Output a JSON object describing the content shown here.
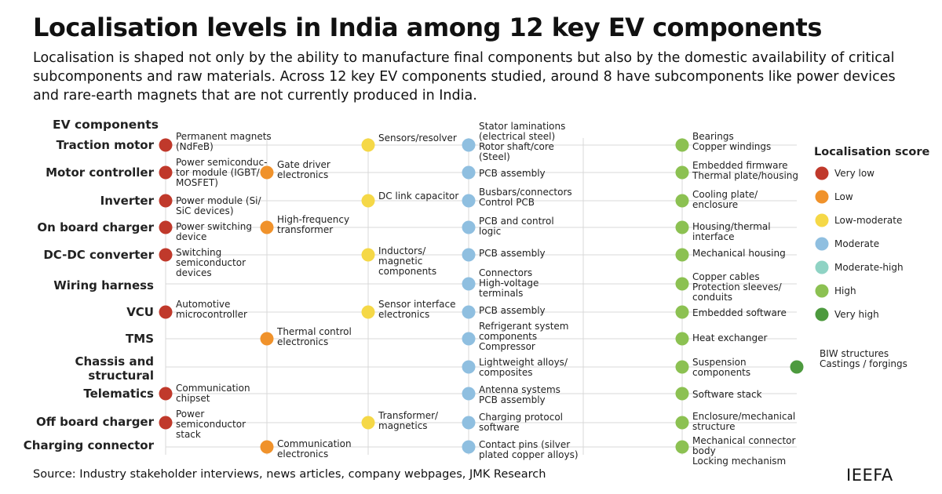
{
  "title": "Localisation levels in India among 12 key EV components",
  "subtitle": "Localisation is shaped not only by the ability to manufacture final components but also by the domestic availability of critical subcomponents and raw materials. Across 12 key EV components studied, around 8 have subcomponents like power devices and rare-earth magnets that are not currently produced in India.",
  "source": "Source: Industry stakeholder interviews, news articles, company webpages, JMK Research",
  "brand": "IEEFA",
  "colors": {
    "Very low": "#c0392b",
    "Low": "#f0922b",
    "Low-moderate": "#f5d847",
    "Moderate": "#8fbfe0",
    "Moderate-high": "#8fd3c4",
    "High": "#8cc152",
    "Very high": "#4d9a3e",
    "grid": "#d9d9d9"
  },
  "chart_data": {
    "type": "table",
    "row_header": "EV components",
    "legend_title": "Localisation score",
    "levels": [
      "Very low",
      "Low",
      "Low-moderate",
      "Moderate",
      "Moderate-high",
      "High",
      "Very high"
    ],
    "rows": [
      {
        "component": "Traction motor",
        "cells": [
          {
            "level": "Very low",
            "text": "Permanent magnets (NdFeB)"
          },
          {
            "level": "Low-moderate",
            "text": "Sensors/resolver"
          },
          {
            "level": "Moderate",
            "text": "Stator laminations (electrical steel) Rotor shaft/core (Steel)"
          },
          {
            "level": "High",
            "text": "Bearings Copper windings"
          }
        ]
      },
      {
        "component": "Motor controller",
        "cells": [
          {
            "level": "Very low",
            "text": "Power semiconductor module (IGBT/MOSFET)"
          },
          {
            "level": "Low",
            "text": "Gate driver electronics"
          },
          {
            "level": "Moderate",
            "text": "PCB assembly"
          },
          {
            "level": "High",
            "text": "Embedded firmware Thermal plate/housing"
          }
        ]
      },
      {
        "component": "Inverter",
        "cells": [
          {
            "level": "Very low",
            "text": "Power module (Si/SiC devices)"
          },
          {
            "level": "Low-moderate",
            "text": "DC link capacitor"
          },
          {
            "level": "Moderate",
            "text": "Busbars/connectors Control PCB"
          },
          {
            "level": "High",
            "text": "Cooling plate/enclosure"
          }
        ]
      },
      {
        "component": "On board charger",
        "cells": [
          {
            "level": "Very low",
            "text": "Power switching device"
          },
          {
            "level": "Low",
            "text": "High-frequency transformer"
          },
          {
            "level": "Moderate",
            "text": "PCB and control logic"
          },
          {
            "level": "High",
            "text": "Housing/thermal interface"
          }
        ]
      },
      {
        "component": "DC-DC converter",
        "cells": [
          {
            "level": "Very low",
            "text": "Switching semiconductor devices"
          },
          {
            "level": "Low-moderate",
            "text": "Inductors/magnetic components"
          },
          {
            "level": "Moderate",
            "text": "PCB assembly"
          },
          {
            "level": "High",
            "text": "Mechanical housing"
          }
        ]
      },
      {
        "component": "Wiring harness",
        "cells": [
          {
            "level": "Moderate",
            "text": "Connectors High-voltage terminals"
          },
          {
            "level": "High",
            "text": "Copper cables Protection sleeves/conduits"
          }
        ]
      },
      {
        "component": "VCU",
        "cells": [
          {
            "level": "Very low",
            "text": "Automotive microcontroller"
          },
          {
            "level": "Low-moderate",
            "text": "Sensor interface electronics"
          },
          {
            "level": "Moderate",
            "text": "PCB assembly"
          },
          {
            "level": "High",
            "text": "Embedded software"
          }
        ]
      },
      {
        "component": "TMS",
        "cells": [
          {
            "level": "Low",
            "text": "Thermal control electronics"
          },
          {
            "level": "Moderate",
            "text": "Refrigerant system components Compressor"
          },
          {
            "level": "High",
            "text": "Heat exchanger"
          }
        ]
      },
      {
        "component": "Chassis and structural",
        "cells": [
          {
            "level": "Moderate",
            "text": "Lightweight alloys/composites"
          },
          {
            "level": "High",
            "text": "Suspension components"
          },
          {
            "level": "Very high",
            "text": "BIW structures Castings / forgings"
          }
        ]
      },
      {
        "component": "Telematics",
        "cells": [
          {
            "level": "Very low",
            "text": "Communication chipset"
          },
          {
            "level": "Moderate",
            "text": "Antenna systems PCB assembly"
          },
          {
            "level": "High",
            "text": "Software stack"
          }
        ]
      },
      {
        "component": "Off board charger",
        "cells": [
          {
            "level": "Very low",
            "text": "Power semiconductor stack"
          },
          {
            "level": "Low-moderate",
            "text": "Transformer/magnetics"
          },
          {
            "level": "Moderate",
            "text": "Charging protocol software"
          },
          {
            "level": "High",
            "text": "Enclosure/mechanical structure"
          }
        ]
      },
      {
        "component": "Charging connector",
        "cells": [
          {
            "level": "Low",
            "text": "Communication electronics"
          },
          {
            "level": "Moderate",
            "text": "Contact pins (silver plated copper alloys)"
          },
          {
            "level": "High",
            "text": "Mechanical connector body Locking mechanism"
          }
        ]
      }
    ]
  }
}
